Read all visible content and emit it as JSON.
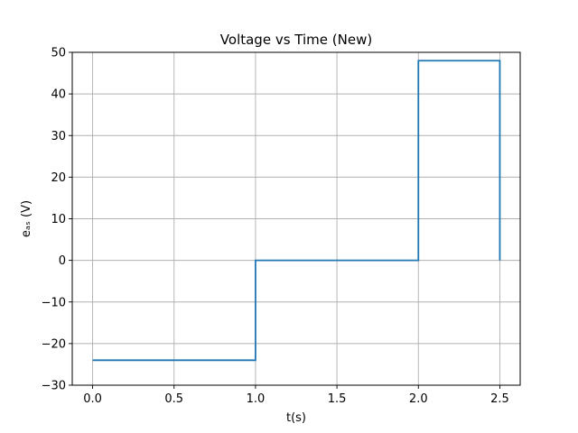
{
  "chart_data": {
    "type": "line",
    "title": "Voltage vs Time (New)",
    "xlabel": "t(s)",
    "ylabel": "eₐₛ (V)",
    "xlim": [
      -0.125,
      2.625
    ],
    "ylim": [
      -30,
      50
    ],
    "x_ticks": [
      0.0,
      0.5,
      1.0,
      1.5,
      2.0,
      2.5
    ],
    "x_tick_labels": [
      "0.0",
      "0.5",
      "1.0",
      "1.5",
      "2.0",
      "2.5"
    ],
    "y_ticks": [
      -30,
      -20,
      -10,
      0,
      10,
      20,
      30,
      40,
      50
    ],
    "y_tick_labels": [
      "−30",
      "−20",
      "−10",
      "0",
      "10",
      "20",
      "30",
      "40",
      "50"
    ],
    "grid": true,
    "series": [
      {
        "color": "#1f77b4",
        "step": true,
        "x": [
          0.0,
          1.0,
          1.0,
          2.0,
          2.0,
          2.5,
          2.5
        ],
        "y": [
          -24,
          -24,
          0,
          0,
          48,
          48,
          0
        ]
      }
    ]
  }
}
